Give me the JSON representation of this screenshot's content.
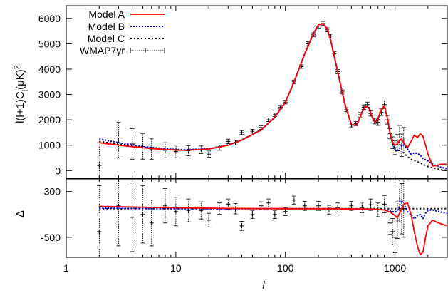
{
  "chart_data": [
    {
      "type": "line",
      "panel": "top",
      "xlabel": "l",
      "ylabel": "l(l+1)C_l (μK)^2",
      "ylabel_parts": {
        "pre": "l(l+1)C",
        "sub": "l",
        "post": "(μK)",
        "sup": "2"
      },
      "xscale": "log",
      "xlim": [
        1,
        3000
      ],
      "ylim": [
        -300,
        6500
      ],
      "x_tick_labels": [
        "1",
        "10",
        "100",
        "1000"
      ],
      "y_tick_labels": [
        "0",
        "1000",
        "2000",
        "3000",
        "4000",
        "5000",
        "6000"
      ],
      "grid": false,
      "legend_position": "top-left",
      "legend_entries": [
        "Model A",
        "Model B",
        "Model C",
        "WMAP7yr"
      ],
      "series": [
        {
          "name": "Model A",
          "color": "#ff0000",
          "style": "solid",
          "x": [
            2,
            3,
            5,
            8,
            12,
            20,
            30,
            40,
            60,
            80,
            100,
            120,
            150,
            180,
            200,
            220,
            240,
            260,
            300,
            350,
            400,
            450,
            500,
            540,
            580,
            620,
            660,
            700,
            750,
            800,
            850,
            900,
            950,
            1000,
            1050,
            1100,
            1150,
            1200,
            1300,
            1400,
            1500,
            1600,
            1700,
            1800,
            1900,
            2000,
            2200,
            2400,
            2600,
            3000
          ],
          "y": [
            1100,
            1000,
            900,
            830,
            800,
            850,
            1000,
            1200,
            1600,
            2100,
            2700,
            3500,
            4600,
            5400,
            5750,
            5800,
            5600,
            5100,
            3900,
            2600,
            1800,
            1800,
            2300,
            2550,
            2450,
            2100,
            1900,
            2050,
            2400,
            2550,
            2100,
            1500,
            1100,
            1000,
            1050,
            1200,
            1250,
            1100,
            900,
            1150,
            1400,
            1300,
            1450,
            1350,
            1000,
            650,
            180,
            200,
            250,
            250
          ]
        },
        {
          "name": "Model B",
          "color": "#0000ff",
          "style": "dotted",
          "x": [
            2,
            3,
            5,
            8,
            12,
            20,
            30,
            40,
            60,
            80,
            100,
            120,
            150,
            180,
            200,
            220,
            240,
            260,
            300,
            350,
            400,
            450,
            500,
            540,
            580,
            620,
            660,
            700,
            750,
            800,
            850,
            900,
            950,
            1000,
            1050,
            1100,
            1150,
            1200,
            1300,
            1400,
            1500,
            1600,
            1700,
            1800,
            1900,
            2000,
            2200,
            2400,
            2600,
            3000
          ],
          "y": [
            1250,
            1100,
            950,
            860,
            820,
            860,
            1010,
            1210,
            1610,
            2100,
            2700,
            3500,
            4600,
            5400,
            5750,
            5790,
            5600,
            5100,
            3900,
            2600,
            1800,
            1800,
            2300,
            2550,
            2450,
            2100,
            1900,
            2050,
            2400,
            2550,
            2100,
            1500,
            1100,
            850,
            800,
            880,
            980,
            1020,
            850,
            650,
            700,
            680,
            600,
            480,
            430,
            380,
            260,
            190,
            140,
            80
          ]
        },
        {
          "name": "Model C",
          "color": "#000000",
          "style": "dotted",
          "x": [
            2,
            3,
            5,
            8,
            12,
            20,
            30,
            40,
            60,
            80,
            100,
            120,
            150,
            180,
            200,
            220,
            240,
            260,
            300,
            350,
            400,
            450,
            500,
            540,
            580,
            620,
            660,
            700,
            750,
            800,
            850,
            900,
            950,
            1000,
            1050,
            1100,
            1150,
            1200,
            1300,
            1400,
            1500,
            1600,
            1700,
            1800,
            1900,
            2000,
            2200,
            2400,
            2600,
            3000
          ],
          "y": [
            1150,
            1050,
            920,
            840,
            810,
            855,
            1005,
            1205,
            1605,
            2100,
            2700,
            3500,
            4600,
            5400,
            5750,
            5800,
            5600,
            5100,
            3900,
            2600,
            1800,
            1800,
            2300,
            2550,
            2450,
            2100,
            1900,
            2050,
            2400,
            2550,
            2100,
            1500,
            1050,
            800,
            750,
            820,
            850,
            700,
            550,
            450,
            400,
            350,
            300,
            250,
            200,
            160,
            110,
            70,
            40,
            10
          ]
        }
      ],
      "data_points": {
        "name": "WMAP7yr",
        "x": [
          2,
          3,
          4,
          5,
          6,
          8,
          10,
          13,
          17,
          20,
          25,
          30,
          35,
          40,
          50,
          60,
          70,
          80,
          90,
          100,
          120,
          140,
          160,
          180,
          200,
          220,
          240,
          260,
          280,
          300,
          330,
          360,
          400,
          440,
          480,
          520,
          560,
          600,
          650,
          700,
          750,
          800,
          850,
          900,
          950,
          1000,
          1050,
          1100,
          1150,
          1200
        ],
        "y": [
          200,
          1200,
          1050,
          950,
          850,
          800,
          750,
          780,
          820,
          650,
          900,
          1150,
          1100,
          1500,
          1550,
          1700,
          2000,
          2200,
          2500,
          2700,
          3500,
          4100,
          5000,
          5350,
          5700,
          5800,
          5550,
          5300,
          4600,
          3900,
          3100,
          2400,
          1800,
          1850,
          2200,
          2500,
          2600,
          2250,
          1950,
          1900,
          2300,
          2600,
          2000,
          1450,
          1100,
          900,
          1100,
          1400,
          1000,
          1200
        ],
        "err": [
          900,
          700,
          600,
          500,
          400,
          300,
          250,
          200,
          150,
          120,
          100,
          90,
          90,
          80,
          70,
          70,
          70,
          70,
          70,
          70,
          70,
          70,
          80,
          80,
          80,
          80,
          80,
          80,
          80,
          80,
          80,
          80,
          80,
          80,
          90,
          90,
          100,
          100,
          110,
          120,
          130,
          150,
          170,
          200,
          230,
          270,
          320,
          380,
          440,
          500
        ]
      }
    },
    {
      "type": "line",
      "panel": "bottom",
      "xlabel": "l",
      "ylabel": "Δ",
      "xscale": "log",
      "xlim": [
        1,
        3000
      ],
      "ylim": [
        -850,
        520
      ],
      "y_tick_labels": [
        "300",
        "-500"
      ],
      "grid": false,
      "series": [
        {
          "name": "Model A",
          "color": "#ff0000",
          "style": "solid",
          "x": [
            2,
            5,
            10,
            30,
            100,
            300,
            600,
            800,
            900,
            1000,
            1050,
            1100,
            1200,
            1300,
            1400,
            1500,
            1600,
            1700,
            1800,
            1900,
            2000,
            2200,
            2500,
            3000
          ],
          "y": [
            40,
            25,
            15,
            5,
            0,
            0,
            -5,
            -20,
            -60,
            -120,
            -160,
            -80,
            80,
            100,
            -100,
            -400,
            -650,
            -800,
            -760,
            -500,
            -300,
            -200,
            -250,
            -300
          ]
        },
        {
          "name": "Model B",
          "color": "#0000ff",
          "style": "dotted",
          "x": [
            2,
            5,
            10,
            30,
            100,
            300,
            600,
            800,
            900,
            1000,
            1050,
            1100,
            1150,
            1200,
            1300,
            1400,
            1500,
            1600,
            1700,
            1800,
            1900,
            2000,
            2200,
            2500,
            3000
          ],
          "y": [
            10,
            5,
            2,
            0,
            0,
            0,
            -5,
            -20,
            -40,
            -60,
            -40,
            60,
            140,
            100,
            -50,
            -100,
            -180,
            -120,
            -100,
            -170,
            -80,
            -30,
            -20,
            -50,
            -80
          ]
        },
        {
          "name": "Model C",
          "color": "#000000",
          "style": "dotted",
          "x": [
            2,
            5,
            10,
            30,
            100,
            300,
            600,
            800,
            900,
            1000,
            1100,
            1200,
            1500,
            2000,
            2500,
            3000
          ],
          "y": [
            0,
            0,
            0,
            0,
            0,
            0,
            0,
            0,
            0,
            0,
            0,
            0,
            0,
            0,
            0,
            0
          ]
        }
      ],
      "data_points": {
        "name": "WMAP7yr",
        "x": [
          2,
          3,
          4,
          5,
          6,
          8,
          10,
          13,
          17,
          20,
          25,
          30,
          35,
          40,
          50,
          60,
          70,
          80,
          100,
          120,
          150,
          200,
          250,
          300,
          400,
          500,
          600,
          700,
          800,
          900,
          950,
          1000,
          1050,
          1100,
          1150,
          1200
        ],
        "y": [
          -400,
          50,
          -150,
          -100,
          -250,
          50,
          -50,
          -30,
          -30,
          -200,
          0,
          80,
          0,
          -300,
          -100,
          50,
          100,
          -100,
          -50,
          150,
          50,
          50,
          -20,
          20,
          50,
          20,
          70,
          -20,
          80,
          -250,
          -400,
          -500,
          -200,
          150,
          0,
          0
        ],
        "err": [
          800,
          700,
          600,
          500,
          400,
          300,
          250,
          200,
          150,
          120,
          100,
          90,
          90,
          80,
          70,
          70,
          70,
          70,
          70,
          70,
          80,
          80,
          80,
          80,
          80,
          90,
          100,
          120,
          150,
          200,
          230,
          270,
          320,
          380,
          440,
          500
        ]
      }
    }
  ]
}
